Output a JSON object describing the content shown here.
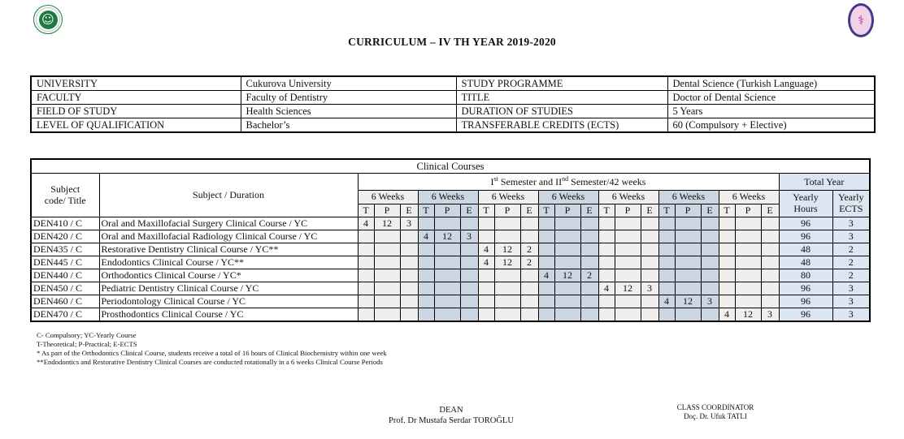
{
  "colors": {
    "group_shade_light": "#f0efed",
    "group_shade_blue": "#ccd6e2",
    "total_column": "#dce6f2",
    "border": "#000000",
    "logo_green": "#1e7a3e",
    "logo_navy": "#413a8e",
    "logo_pink": "#f3d3e7"
  },
  "header": {
    "title": "CURRICULUM – IV TH YEAR 2019-2020",
    "left_logo_glyph": "☺",
    "right_logo_glyph": "⚕"
  },
  "info_table": {
    "rows": [
      {
        "label1": "UNIVERSITY",
        "value1": "Cukurova University",
        "label2": "STUDY PROGRAMME",
        "value2": "Dental Science (Turkish Language)"
      },
      {
        "label1": "FACULTY",
        "value1": "Faculty of Dentistry",
        "label2": "TITLE",
        "value2": "Doctor of Dental Science"
      },
      {
        "label1": "FIELD OF STUDY",
        "value1": "Health Sciences",
        "label2": "DURATION OF STUDIES",
        "value2": "5 Years"
      },
      {
        "label1": "LEVEL OF QUALIFICATION",
        "value1": "Bachelor’s",
        "label2": "TRANSFERABLE CREDITS (ECTS)",
        "value2": "60 (Compulsory + Elective)"
      }
    ]
  },
  "courses_table": {
    "title": "Clinical Courses",
    "headers": {
      "subject_code": [
        "Subject",
        "code/ Title"
      ],
      "subject_duration": "Subject / Duration",
      "semester_parts": [
        {
          "text": "I",
          "sup": false
        },
        {
          "text": "st",
          "sup": true
        },
        {
          "text": " Semester and II",
          "sup": false
        },
        {
          "text": "nd",
          "sup": true
        },
        {
          "text": " Semester/42 weeks",
          "sup": false
        }
      ],
      "week_label": "6 Weeks",
      "week_group_count": 7,
      "tpe": [
        "T",
        "P",
        "E"
      ],
      "total_year": "Total Year",
      "yearly_hours": [
        "Yearly",
        "Hours"
      ],
      "yearly_ects": [
        "Yearly",
        "ECTS"
      ]
    },
    "rows": [
      {
        "code": "DEN410 / C",
        "name": "Oral and Maxillofacial Surgery Clinical Course  / YC",
        "group": 1,
        "t": "4",
        "p": "12",
        "e": "3",
        "yearly_hours": "96",
        "yearly_ects": "3"
      },
      {
        "code": "DEN420 / C",
        "name": "Oral and Maxillofacial Radiology Clinical Course  / YC",
        "group": 2,
        "t": "4",
        "p": "12",
        "e": "3",
        "yearly_hours": "96",
        "yearly_ects": "3"
      },
      {
        "code": "DEN435 / C",
        "name": "Restorative Dentistry Clinical Course  / YC**",
        "group": 3,
        "t": "4",
        "p": "12",
        "e": "2",
        "yearly_hours": "48",
        "yearly_ects": "2"
      },
      {
        "code": "DEN445 / C",
        "name": "Endodontics Clinical Course  / YC**",
        "group": 3,
        "t": "4",
        "p": "12",
        "e": "2",
        "yearly_hours": "48",
        "yearly_ects": "2"
      },
      {
        "code": "DEN440 / C",
        "name": "Orthodontics Clinical Course  / YC*",
        "group": 4,
        "t": "4",
        "p": "12",
        "e": "2",
        "yearly_hours": "80",
        "yearly_ects": "2"
      },
      {
        "code": "DEN450 / C",
        "name": "Pediatric Dentistry Clinical Course / YC",
        "group": 5,
        "t": "4",
        "p": "12",
        "e": "3",
        "yearly_hours": "96",
        "yearly_ects": "3"
      },
      {
        "code": "DEN460 / C",
        "name": "Periodontology Clinical Course / YC",
        "group": 6,
        "t": "4",
        "p": "12",
        "e": "3",
        "yearly_hours": "96",
        "yearly_ects": "3"
      },
      {
        "code": "DEN470 / C",
        "name": "Prosthodontics Clinical Course  / YC",
        "group": 7,
        "t": "4",
        "p": "12",
        "e": "3",
        "yearly_hours": "96",
        "yearly_ects": "3"
      }
    ]
  },
  "footnotes": [
    "C- Compulsory; YC-Yearly Course",
    "T-Theoretical; P-Practical; E-ECTS",
    "* As part of the Orthodontics Clinical Course, students receive a total of 16 hours of Clinical Biochemistry within one week",
    "**Endodontics and Restorative Dentistry Clinical Courses are conducted rotationally in a 6 weeks Clinical Course Periods"
  ],
  "signatures": {
    "dean": {
      "title": "DEAN",
      "name": "Prof. Dr Mustafa Serdar TOROĞLU"
    },
    "coordinator": {
      "title": "CLASS COORDINATOR",
      "name": "Doç. Dr. Ufuk TATLI"
    }
  }
}
